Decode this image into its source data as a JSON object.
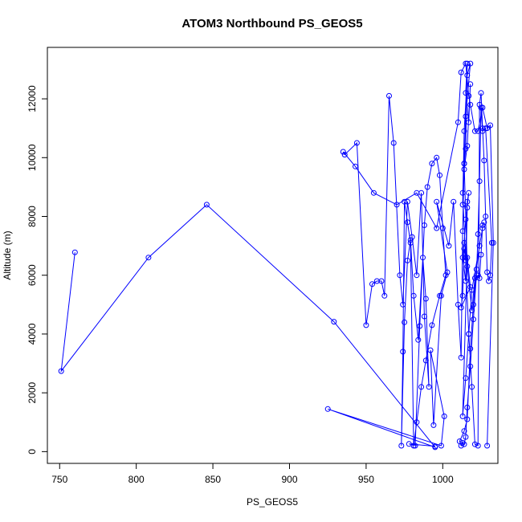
{
  "chart_data": {
    "type": "line",
    "title": "ATOM3 Northbound PS_GEOS5",
    "xlabel": "PS_GEOS5",
    "ylabel": "Altitude (m)",
    "xlim": [
      742,
      1036
    ],
    "ylim": [
      -400,
      13750
    ],
    "x_ticks": [
      750,
      800,
      850,
      900,
      950,
      1000
    ],
    "y_ticks": [
      0,
      2000,
      4000,
      6000,
      8000,
      10000,
      12000
    ],
    "grid": false,
    "legend": "none",
    "colors": {
      "series": "#0000ff",
      "frame": "#000000"
    },
    "series": [
      {
        "marker": "open-circle",
        "x": [
          760,
          751,
          808,
          846,
          929,
          995,
          925,
          999,
          1001,
          992,
          994,
          999,
          1003,
          996,
          1004,
          1007,
          1010,
          1012,
          1013,
          1014,
          1015,
          1016,
          1015,
          1017,
          1018,
          1016,
          1014,
          1013,
          1015,
          1017,
          1019,
          1021,
          1023,
          1024,
          1025,
          1026,
          1027,
          1028,
          1029,
          1030,
          1031,
          1032,
          1028,
          1026,
          1025,
          1024,
          1023,
          1022,
          1020,
          1018,
          1016,
          1015,
          1014,
          1013,
          1012,
          1011,
          1014,
          1016,
          1018,
          1020,
          1022,
          1024,
          1026,
          1019,
          1017,
          1015,
          1013,
          1016,
          1018,
          1012,
          1013,
          1014,
          1015,
          1016,
          1017,
          1015,
          1014,
          1013,
          1015,
          1016,
          1013,
          1014,
          1016,
          1018,
          1015,
          1014,
          1016,
          1019,
          1021,
          1023,
          1024,
          1025,
          1026,
          1027
        ],
        "y": [
          6780,
          2740,
          6600,
          8400,
          4420,
          150,
          1450,
          200,
          1200,
          3450,
          900,
          5300,
          6100,
          8500,
          7000,
          8500,
          5000,
          3200,
          7500,
          9800,
          10300,
          13200,
          12200,
          11200,
          12500,
          10400,
          9600,
          8800,
          6500,
          4000,
          2200,
          250,
          200,
          11800,
          12200,
          11000,
          9900,
          8000,
          6100,
          5800,
          6000,
          7100,
          11000,
          10900,
          11700,
          9200,
          7400,
          6000,
          4500,
          2900,
          1500,
          500,
          250,
          300,
          200,
          350,
          700,
          1100,
          3500,
          5000,
          6200,
          7000,
          7600,
          5500,
          4000,
          2500,
          1200,
          6600,
          5600,
          4900,
          5300,
          6900,
          6600,
          8500,
          8800,
          7900,
          7100,
          6600,
          5800,
          8300,
          8400,
          10900,
          12800,
          13200,
          11400,
          9800,
          6300,
          4800,
          5900,
          6000,
          5900,
          6700,
          7700,
          7800
        ]
      },
      {
        "marker": "open-circle",
        "x": [
          995,
          978,
          982,
          985,
          988,
          990,
          993,
          996,
          998,
          1000,
          1002,
          998,
          993,
          989,
          986,
          983,
          981,
          979,
          977,
          975,
          974,
          973,
          975,
          977,
          979,
          981,
          984,
          987,
          989,
          991,
          988,
          986,
          983,
          980,
          977,
          974,
          972,
          968,
          965,
          962,
          960,
          957,
          954,
          950,
          944,
          936,
          935,
          943,
          955,
          970,
          983,
          996,
          1010,
          1012,
          1015,
          1017,
          1018,
          1021,
          1023,
          1026,
          1029,
          1031,
          1033,
          1029
        ],
        "y": [
          180,
          260,
          200,
          4270,
          7700,
          9000,
          9800,
          10000,
          9400,
          7600,
          6000,
          5300,
          4300,
          3100,
          2200,
          1000,
          200,
          7100,
          7800,
          8500,
          3400,
          200,
          4400,
          6500,
          7200,
          5300,
          3800,
          6600,
          5200,
          2200,
          4600,
          8800,
          6000,
          7300,
          8500,
          5000,
          6000,
          10500,
          12100,
          5300,
          5800,
          5800,
          5700,
          4300,
          10500,
          10100,
          10200,
          9700,
          8800,
          8400,
          8800,
          7600,
          11200,
          12900,
          13200,
          12100,
          11800,
          10900,
          10900,
          11700,
          11000,
          11100,
          7100,
          200
        ]
      }
    ]
  }
}
